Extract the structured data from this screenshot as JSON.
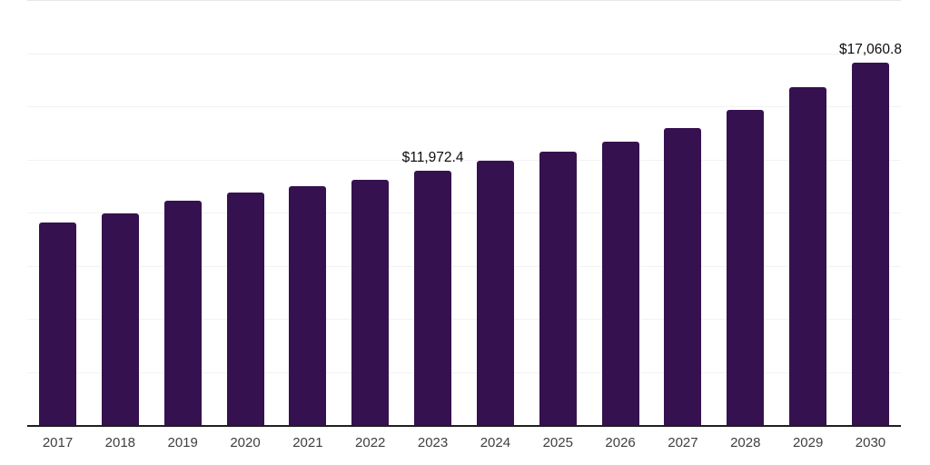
{
  "chart_data": {
    "type": "bar",
    "title": "",
    "xlabel": "",
    "ylabel": "",
    "categories": [
      "2017",
      "2018",
      "2019",
      "2020",
      "2021",
      "2022",
      "2023",
      "2024",
      "2025",
      "2026",
      "2027",
      "2028",
      "2029",
      "2030"
    ],
    "values": [
      9550,
      9970,
      10540,
      10920,
      11240,
      11540,
      11972.4,
      12440,
      12850,
      13340,
      13980,
      14830,
      15890,
      17060.8
    ],
    "data_labels": [
      null,
      null,
      null,
      null,
      null,
      null,
      "$11,972.4",
      null,
      null,
      null,
      null,
      null,
      null,
      "$17,060.8"
    ],
    "ylim": [
      0,
      20000
    ],
    "gridline_step": 2500,
    "grid": "horizontal-only",
    "legend": "none",
    "colors": {
      "bar": "#36114f",
      "axis_line": "#1f1f1f",
      "gridline": "#f2f2f4",
      "top_gridline": "#e7e7ea",
      "year_label": "#404040",
      "data_label": "#0d0d0d",
      "background": "#ffffff"
    }
  }
}
